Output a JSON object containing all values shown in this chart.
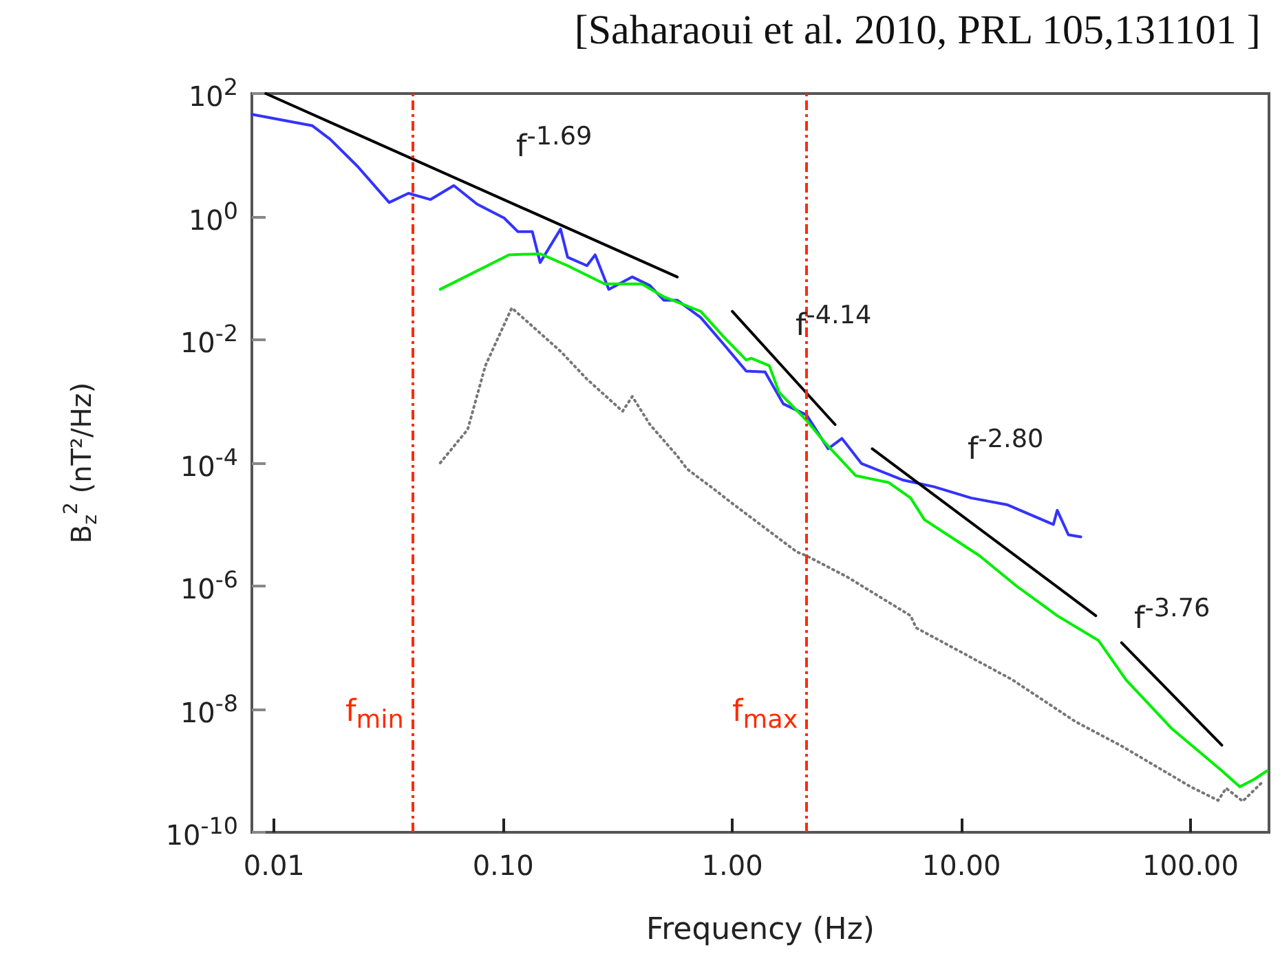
{
  "chart_data": {
    "type": "line",
    "title": "[Saharaoui et al. 2010, PRL 105,131101 ]",
    "xlabel": "Frequency (Hz)",
    "ylabel": "B$_{z}$$^{2}$ (nT²/Hz)",
    "log": "xy",
    "grid": false,
    "marker": "none",
    "xlim": [
      0.008,
      220
    ],
    "xticks": [
      {
        "value": 0.01,
        "label": "0.01"
      },
      {
        "value": 0.1,
        "label": "0.10"
      },
      {
        "value": 1,
        "label": "1.00"
      },
      {
        "value": 10,
        "label": "10.00"
      },
      {
        "value": 100,
        "label": "100.00"
      }
    ],
    "ylim": [
      1e-10,
      100
    ],
    "yticks": [
      {
        "value": 1e-10,
        "label": "10$^{-10}$"
      },
      {
        "value": 1e-08,
        "label": "10$^{-8}$"
      },
      {
        "value": 1e-06,
        "label": "10$^{-6}$"
      },
      {
        "value": 0.0001,
        "label": "10$^{-4}$"
      },
      {
        "value": 0.01,
        "label": "10$^{-2}$"
      },
      {
        "value": 1,
        "label": "10$^{0}$"
      },
      {
        "value": 100,
        "label": "10$^{2}$"
      }
    ],
    "series": [
      {
        "color": "#3333ff",
        "line_style": "solid",
        "x": [
          0.008,
          0.0147,
          0.0176,
          0.0232,
          0.0318,
          0.0386,
          0.0482,
          0.0609,
          0.0769,
          0.101,
          0.116,
          0.134,
          0.145,
          0.178,
          0.191,
          0.232,
          0.252,
          0.289,
          0.366,
          0.437,
          0.502,
          0.575,
          0.728,
          0.921,
          1.15,
          1.39,
          1.67,
          2.11,
          2.62,
          3.01,
          3.66,
          5.53,
          7.59,
          11.0,
          15.8,
          25.2,
          26.2,
          29.3,
          33.2
        ],
        "values": [
          46,
          30,
          18,
          6.5,
          1.7,
          2.4,
          1.9,
          3.2,
          1.6,
          0.95,
          0.57,
          0.57,
          0.18,
          0.63,
          0.22,
          0.16,
          0.24,
          0.066,
          0.105,
          0.076,
          0.044,
          0.044,
          0.023,
          0.0083,
          0.0031,
          0.003,
          0.00091,
          0.0006,
          0.00017,
          0.00025,
          9.8e-05,
          5.3e-05,
          4.1e-05,
          2.7e-05,
          2.1e-05,
          1e-05,
          1.7e-05,
          6.8e-06,
          6.3e-06
        ]
      },
      {
        "color": "#00ee00",
        "line_style": "solid",
        "x": [
          0.0531,
          0.106,
          0.145,
          0.191,
          0.277,
          0.403,
          0.502,
          0.728,
          0.921,
          1.15,
          1.21,
          1.45,
          1.6,
          2.11,
          2.52,
          3.46,
          4.82,
          6.0,
          6.89,
          12.0,
          17.4,
          26.2,
          39.7,
          52.3,
          82.5,
          137,
          164,
          189,
          216
        ],
        "values": [
          0.066,
          0.24,
          0.25,
          0.16,
          0.081,
          0.081,
          0.05,
          0.029,
          0.011,
          0.0047,
          0.005,
          0.0038,
          0.0014,
          0.00049,
          0.00022,
          6.2e-05,
          4.8e-05,
          2.7e-05,
          1.2e-05,
          3.1e-06,
          1e-06,
          3.3e-07,
          1.3e-07,
          3e-08,
          4.9e-09,
          1e-09,
          5.5e-10,
          7.2e-10,
          1e-09
        ]
      },
      {
        "color": "#777777",
        "line_style": "dotted",
        "x": [
          0.0531,
          0.07,
          0.0836,
          0.109,
          0.178,
          0.232,
          0.332,
          0.366,
          0.437,
          0.575,
          0.634,
          0.836,
          1.0,
          1.91,
          2.11,
          3.18,
          6.0,
          6.34,
          16.7,
          31.4,
          50.2,
          100,
          132,
          143,
          169,
          208
        ],
        "values": [
          0.0001,
          0.00035,
          0.0038,
          0.033,
          0.0065,
          0.0023,
          0.00069,
          0.0012,
          0.00042,
          0.00013,
          8e-05,
          3.7e-05,
          2.2e-05,
          3.6e-06,
          3.1e-06,
          1.4e-06,
          3.3e-07,
          2.1e-07,
          3e-08,
          6.3e-09,
          2.5e-09,
          5.5e-10,
          3.3e-10,
          5.2e-10,
          3.2e-10,
          6.8e-10
        ]
      },
      {
        "color": "#000000",
        "line_style": "solid",
        "x": [
          0.0092,
          0.575
        ],
        "values": [
          100,
          0.105
        ]
      },
      {
        "color": "#000000",
        "line_style": "solid",
        "x": [
          1.0,
          2.81
        ],
        "values": [
          0.029,
          0.00042
        ]
      },
      {
        "color": "#000000",
        "line_style": "solid",
        "x": [
          4.08,
          38.6
        ],
        "values": [
          0.00017,
          3.3e-07
        ]
      },
      {
        "color": "#000000",
        "line_style": "solid",
        "x": [
          50,
          137
        ],
        "values": [
          1.2e-07,
          2.6e-09
        ]
      }
    ],
    "ref_lines": [
      {
        "axis": "x",
        "value": 0.04,
        "label": "f$_{min}$",
        "color": "#ff2a00",
        "line_style": "dashed"
      },
      {
        "axis": "x",
        "value": 2.1,
        "label": "f$_{max}$",
        "color": "#ff2a00",
        "line_style": "dashed"
      }
    ],
    "annotations": [
      "f$^{-1.69}$",
      "f$^{-4.14}$",
      "f$^{-2.80}$",
      "f$^{-3.76}$"
    ]
  }
}
